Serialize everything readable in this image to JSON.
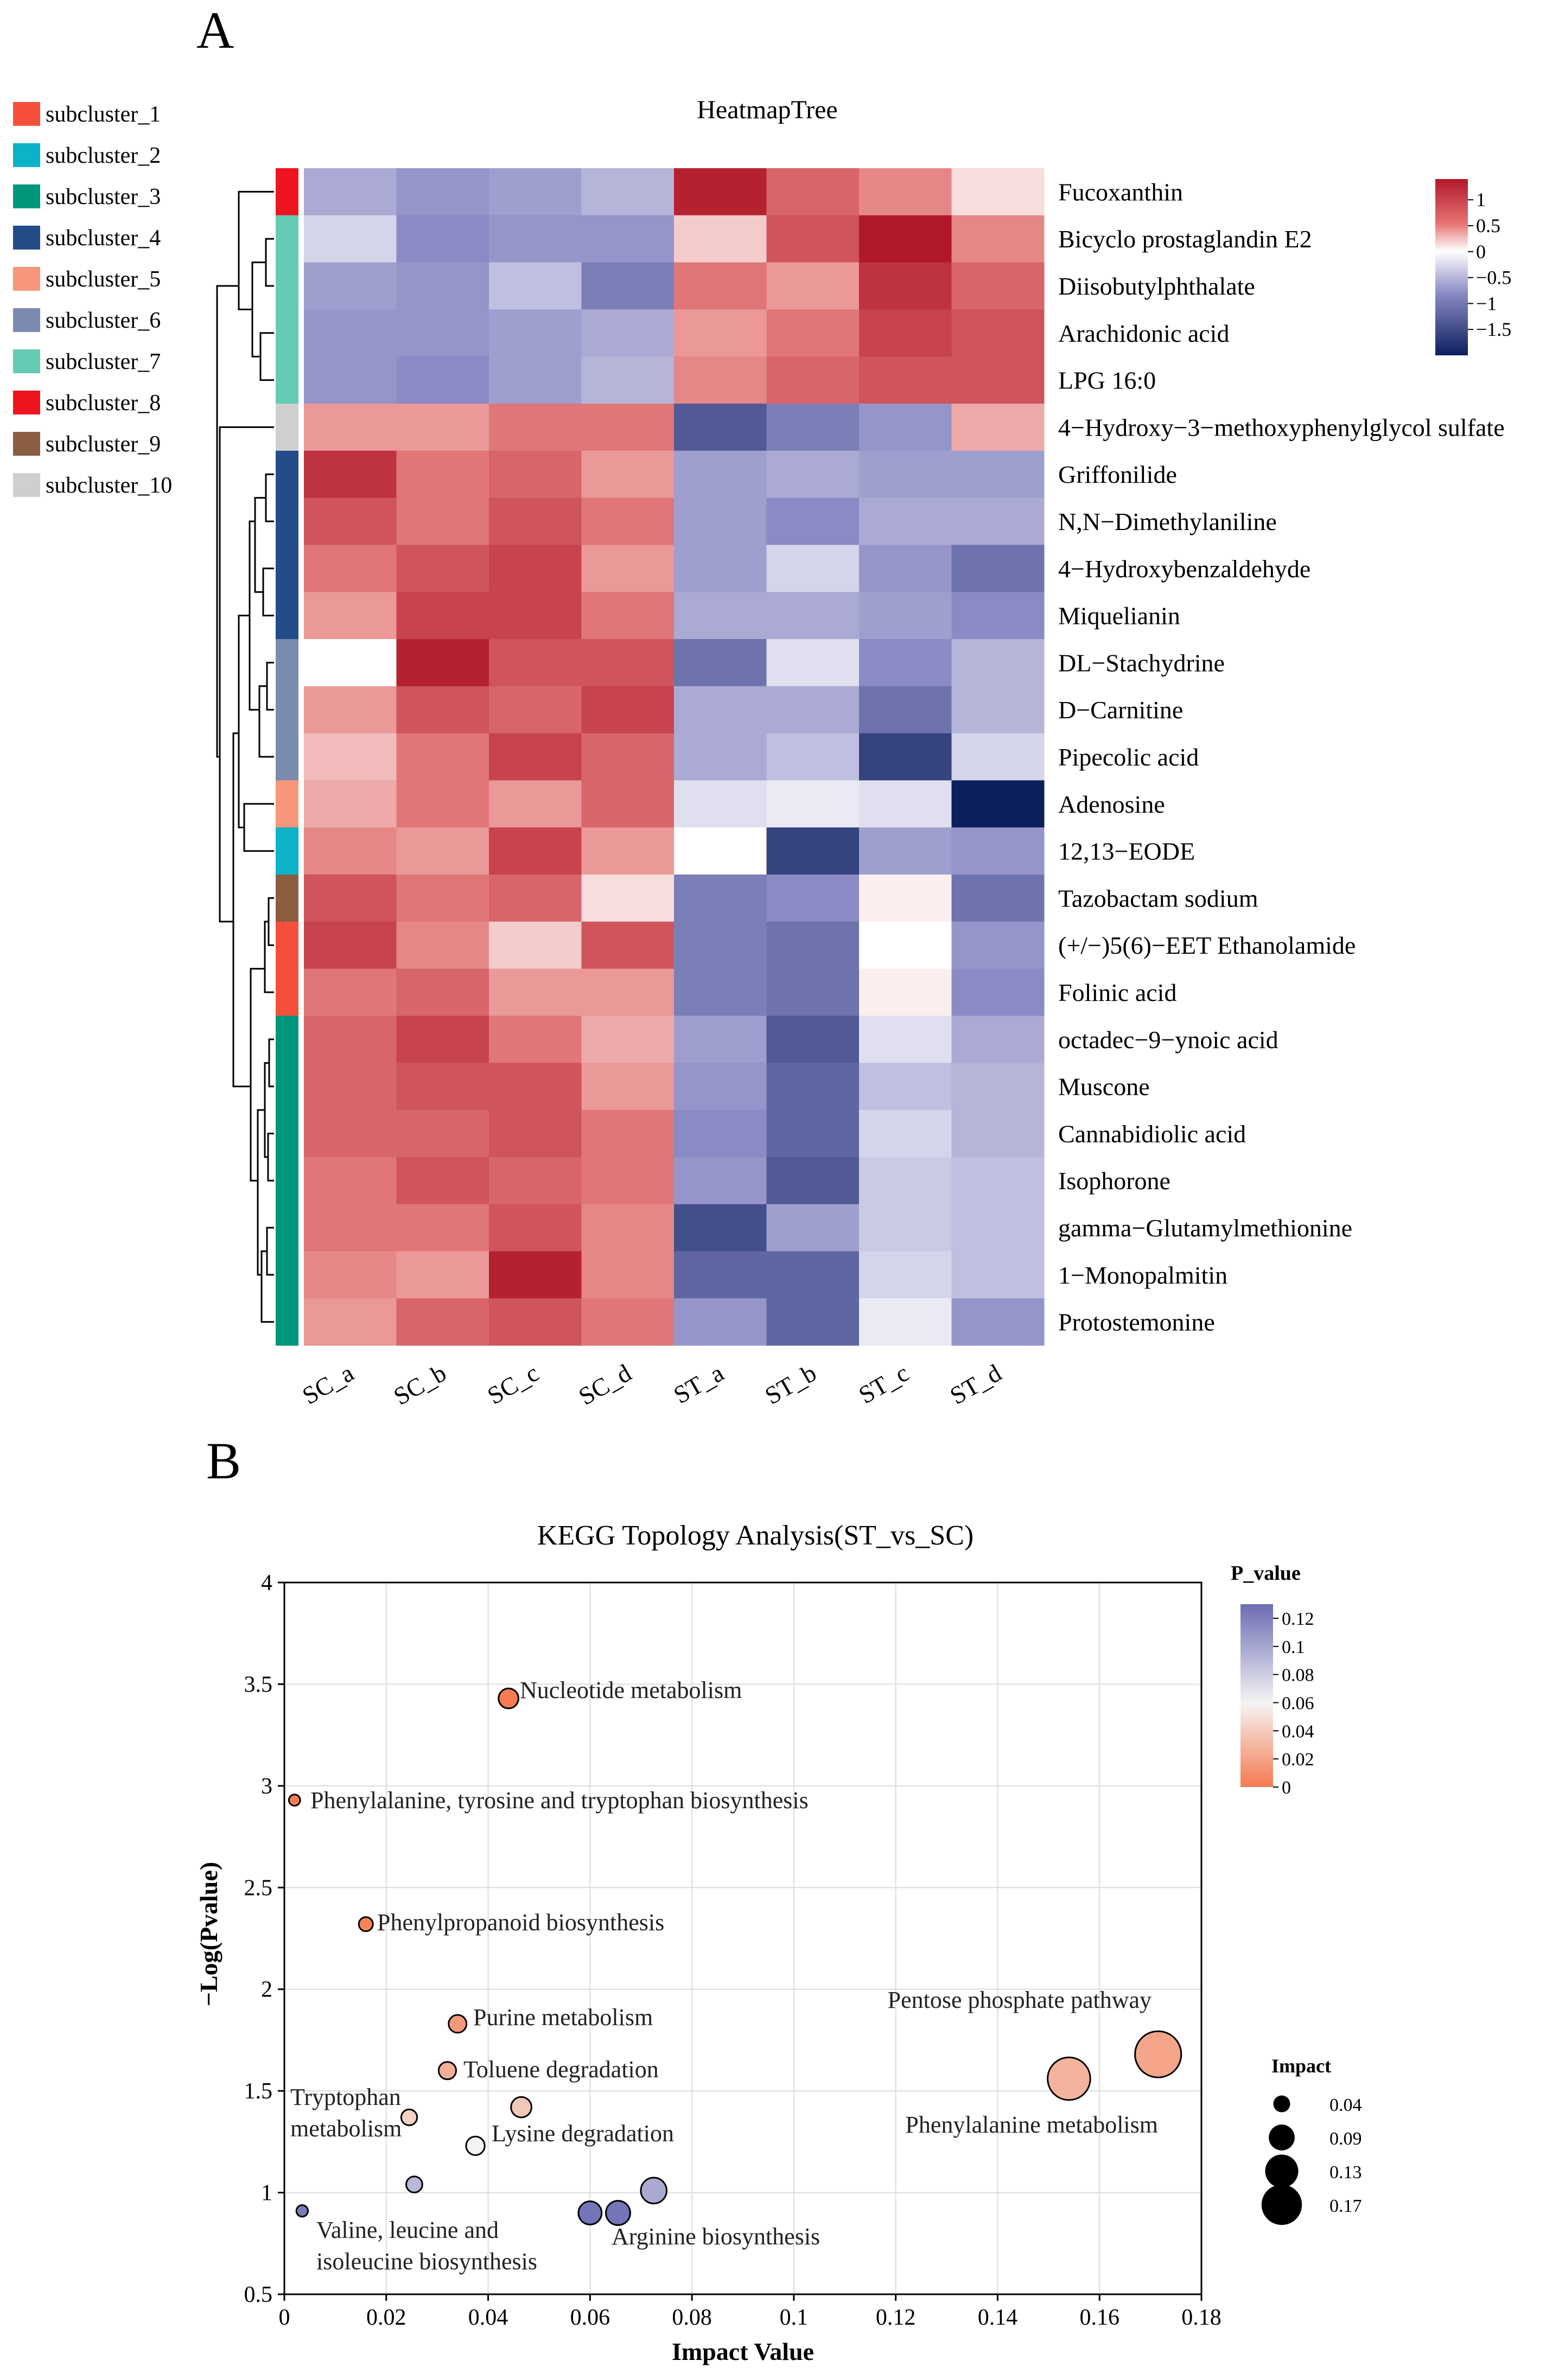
{
  "panel_a": {
    "letter": "A",
    "chart_data": {
      "type": "heatmap",
      "title": "HeatmapTree",
      "columns": [
        "SC_a",
        "SC_b",
        "SC_c",
        "SC_d",
        "ST_a",
        "ST_b",
        "ST_c",
        "ST_d"
      ],
      "rows": [
        {
          "name": "Fucoxanthin",
          "cluster": "subcluster_8",
          "values": [
            -0.8,
            -1.0,
            -0.9,
            -0.7,
            1.3,
            0.9,
            0.7,
            0.2
          ]
        },
        {
          "name": "Bicyclo prostaglandin E2",
          "cluster": "subcluster_7",
          "values": [
            -0.4,
            -1.1,
            -1.0,
            -1.0,
            0.3,
            1.0,
            1.4,
            0.7
          ]
        },
        {
          "name": "Diisobutylphthalate",
          "cluster": "subcluster_7",
          "values": [
            -0.9,
            -1.0,
            -0.6,
            -1.2,
            0.8,
            0.6,
            1.2,
            0.9
          ]
        },
        {
          "name": "Arachidonic acid",
          "cluster": "subcluster_7",
          "values": [
            -1.0,
            -1.0,
            -0.9,
            -0.8,
            0.6,
            0.8,
            1.1,
            1.0
          ]
        },
        {
          "name": "LPG 16:0",
          "cluster": "subcluster_7",
          "values": [
            -1.0,
            -1.1,
            -0.9,
            -0.7,
            0.7,
            0.9,
            1.0,
            1.0
          ]
        },
        {
          "name": "4−Hydroxy−3−methoxyphenylglycol sulfate",
          "cluster": "subcluster_10",
          "values": [
            0.6,
            0.6,
            0.8,
            0.8,
            -1.5,
            -1.2,
            -1.0,
            0.5
          ]
        },
        {
          "name": "Griffonilide",
          "cluster": "subcluster_4",
          "values": [
            1.2,
            0.8,
            0.9,
            0.6,
            -0.9,
            -0.8,
            -0.9,
            -0.9
          ]
        },
        {
          "name": "N,N−Dimethylaniline",
          "cluster": "subcluster_4",
          "values": [
            1.0,
            0.8,
            1.0,
            0.8,
            -0.9,
            -1.1,
            -0.8,
            -0.8
          ]
        },
        {
          "name": "4−Hydroxybenzaldehyde",
          "cluster": "subcluster_4",
          "values": [
            0.8,
            1.0,
            1.1,
            0.6,
            -0.9,
            -0.4,
            -1.0,
            -1.3
          ]
        },
        {
          "name": "Miquelianin",
          "cluster": "subcluster_4",
          "values": [
            0.6,
            1.1,
            1.1,
            0.8,
            -0.8,
            -0.8,
            -0.9,
            -1.1
          ]
        },
        {
          "name": "DL−Stachydrine",
          "cluster": "subcluster_6",
          "values": [
            0.0,
            1.3,
            1.0,
            1.0,
            -1.3,
            -0.3,
            -1.1,
            -0.7
          ]
        },
        {
          "name": "D−Carnitine",
          "cluster": "subcluster_6",
          "values": [
            0.6,
            1.0,
            0.9,
            1.1,
            -0.8,
            -0.8,
            -1.3,
            -0.7
          ]
        },
        {
          "name": "Pipecolic acid",
          "cluster": "subcluster_6",
          "values": [
            0.4,
            0.8,
            1.1,
            0.9,
            -0.8,
            -0.6,
            -1.7,
            -0.4
          ]
        },
        {
          "name": "Adenosine",
          "cluster": "subcluster_5",
          "values": [
            0.5,
            0.8,
            0.6,
            0.9,
            -0.3,
            -0.2,
            -0.3,
            -2.0
          ]
        },
        {
          "name": "12,13−EODE",
          "cluster": "subcluster_2",
          "values": [
            0.7,
            0.6,
            1.1,
            0.6,
            0.0,
            -1.7,
            -0.9,
            -1.0
          ]
        },
        {
          "name": "Tazobactam sodium",
          "cluster": "subcluster_9",
          "values": [
            1.0,
            0.8,
            0.9,
            0.2,
            -1.2,
            -1.1,
            0.1,
            -1.3
          ]
        },
        {
          "name": "(+/−)5(6)−EET Ethanolamide",
          "cluster": "subcluster_1",
          "values": [
            1.1,
            0.7,
            0.3,
            1.0,
            -1.2,
            -1.3,
            0.0,
            -1.0
          ]
        },
        {
          "name": "Folinic acid",
          "cluster": "subcluster_1",
          "values": [
            0.8,
            0.9,
            0.6,
            0.6,
            -1.2,
            -1.3,
            0.1,
            -1.1
          ]
        },
        {
          "name": "octadec−9−ynoic acid",
          "cluster": "subcluster_3",
          "values": [
            0.9,
            1.1,
            0.8,
            0.5,
            -0.9,
            -1.5,
            -0.3,
            -0.8
          ]
        },
        {
          "name": "Muscone",
          "cluster": "subcluster_3",
          "values": [
            0.9,
            1.0,
            1.0,
            0.6,
            -1.0,
            -1.4,
            -0.6,
            -0.7
          ]
        },
        {
          "name": "Cannabidiolic acid",
          "cluster": "subcluster_3",
          "values": [
            0.9,
            0.9,
            1.0,
            0.8,
            -1.1,
            -1.4,
            -0.4,
            -0.7
          ]
        },
        {
          "name": "Isophorone",
          "cluster": "subcluster_3",
          "values": [
            0.8,
            1.0,
            0.9,
            0.8,
            -1.0,
            -1.5,
            -0.5,
            -0.6
          ]
        },
        {
          "name": "gamma−Glutamylmethionine",
          "cluster": "subcluster_3",
          "values": [
            0.8,
            0.8,
            1.0,
            0.7,
            -1.6,
            -0.9,
            -0.5,
            -0.6
          ]
        },
        {
          "name": "1−Monopalmitin",
          "cluster": "subcluster_3",
          "values": [
            0.7,
            0.6,
            1.3,
            0.7,
            -1.4,
            -1.4,
            -0.4,
            -0.6
          ]
        },
        {
          "name": "Protostemonine",
          "cluster": "subcluster_3",
          "values": [
            0.6,
            0.9,
            1.0,
            0.8,
            -1.0,
            -1.4,
            -0.2,
            -1.0
          ]
        }
      ],
      "legend_ticks": [
        "1",
        "0.5",
        "0",
        "−0.5",
        "−1",
        "−1.5"
      ],
      "legend_tick_values": [
        1,
        0.5,
        0,
        -0.5,
        -1,
        -1.5
      ],
      "value_range": [
        -2.0,
        1.4
      ],
      "colors": {
        "high": "#b2182b",
        "mid": "#ffffff",
        "low": "#0b1f5c"
      }
    },
    "clusters": [
      {
        "label": "subcluster_1",
        "color": "#f4503c"
      },
      {
        "label": "subcluster_2",
        "color": "#0bb2c8"
      },
      {
        "label": "subcluster_3",
        "color": "#00977b"
      },
      {
        "label": "subcluster_4",
        "color": "#234d88"
      },
      {
        "label": "subcluster_5",
        "color": "#f7967a"
      },
      {
        "label": "subcluster_6",
        "color": "#7b8bb0"
      },
      {
        "label": "subcluster_7",
        "color": "#66cbb5"
      },
      {
        "label": "subcluster_8",
        "color": "#ee1520"
      },
      {
        "label": "subcluster_9",
        "color": "#8b5e42"
      },
      {
        "label": "subcluster_10",
        "color": "#cfcfcf"
      }
    ]
  },
  "panel_b": {
    "letter": "B",
    "chart_data": {
      "type": "scatter",
      "title": "KEGG Topology Analysis(ST_vs_SC)",
      "xlabel": "Impact Value",
      "ylabel": "−Log(Pvalue)",
      "xlim": [
        0,
        0.18
      ],
      "ylim": [
        0.5,
        4
      ],
      "xticks": [
        "0",
        "0.02",
        "0.04",
        "0.06",
        "0.08",
        "0.1",
        "0.12",
        "0.14",
        "0.16",
        "0.18"
      ],
      "xtick_values": [
        0,
        0.02,
        0.04,
        0.06,
        0.08,
        0.1,
        0.12,
        0.14,
        0.16,
        0.18
      ],
      "yticks": [
        "0.5",
        "1",
        "1.5",
        "2",
        "2.5",
        "3",
        "3.5",
        "4"
      ],
      "ytick_values": [
        0.5,
        1,
        1.5,
        2,
        2.5,
        3,
        3.5,
        4
      ],
      "grid": true,
      "points": [
        {
          "x": 0.044,
          "y": 3.43,
          "p": 0.0004,
          "label": "Nucleotide metabolism",
          "size": "impact"
        },
        {
          "x": 0.002,
          "y": 2.93,
          "p": 0.0012,
          "label": "Phenylalanine, tyrosine and tryptophan biosynthesis"
        },
        {
          "x": 0.016,
          "y": 2.32,
          "p": 0.0048,
          "label": "Phenylpropanoid biosynthesis"
        },
        {
          "x": 0.034,
          "y": 1.83,
          "p": 0.015,
          "label": "Purine metabolism"
        },
        {
          "x": 0.032,
          "y": 1.6,
          "p": 0.025,
          "label": "Toluene degradation"
        },
        {
          "x": 0.0465,
          "y": 1.42,
          "p": 0.038,
          "label": ""
        },
        {
          "x": 0.0245,
          "y": 1.37,
          "p": 0.043,
          "label": "Tryptophan metabolism"
        },
        {
          "x": 0.0375,
          "y": 1.23,
          "p": 0.059,
          "label": "Lysine degradation"
        },
        {
          "x": 0.0255,
          "y": 1.04,
          "p": 0.091,
          "label": ""
        },
        {
          "x": 0.0035,
          "y": 0.91,
          "p": 0.123,
          "label": "Valine, leucine and isoleucine biosynthesis"
        },
        {
          "x": 0.06,
          "y": 0.9,
          "p": 0.126,
          "label": ""
        },
        {
          "x": 0.0655,
          "y": 0.9,
          "p": 0.126,
          "label": "Arginine biosynthesis"
        },
        {
          "x": 0.0725,
          "y": 1.01,
          "p": 0.098,
          "label": ""
        },
        {
          "x": 0.154,
          "y": 1.56,
          "p": 0.028,
          "label": "Phenylalanine metabolism"
        },
        {
          "x": 0.1715,
          "y": 1.68,
          "p": 0.021,
          "label": "Pentose phosphate pathway"
        }
      ],
      "color_legend": {
        "title": "P_value",
        "ticks": [
          "0.12",
          "0.1",
          "0.08",
          "0.06",
          "0.04",
          "0.02",
          "0"
        ],
        "tick_values": [
          0.12,
          0.1,
          0.08,
          0.06,
          0.04,
          0.02,
          0
        ],
        "range": [
          0,
          0.13
        ],
        "colors": {
          "high": "#6c6cb4",
          "mid": "#f4f4f4",
          "low": "#f57a50"
        }
      },
      "size_legend": {
        "title": "Impact",
        "labels": [
          "0.04",
          "0.09",
          "0.13",
          "0.17"
        ],
        "values": [
          0.04,
          0.09,
          0.13,
          0.17
        ]
      }
    }
  }
}
